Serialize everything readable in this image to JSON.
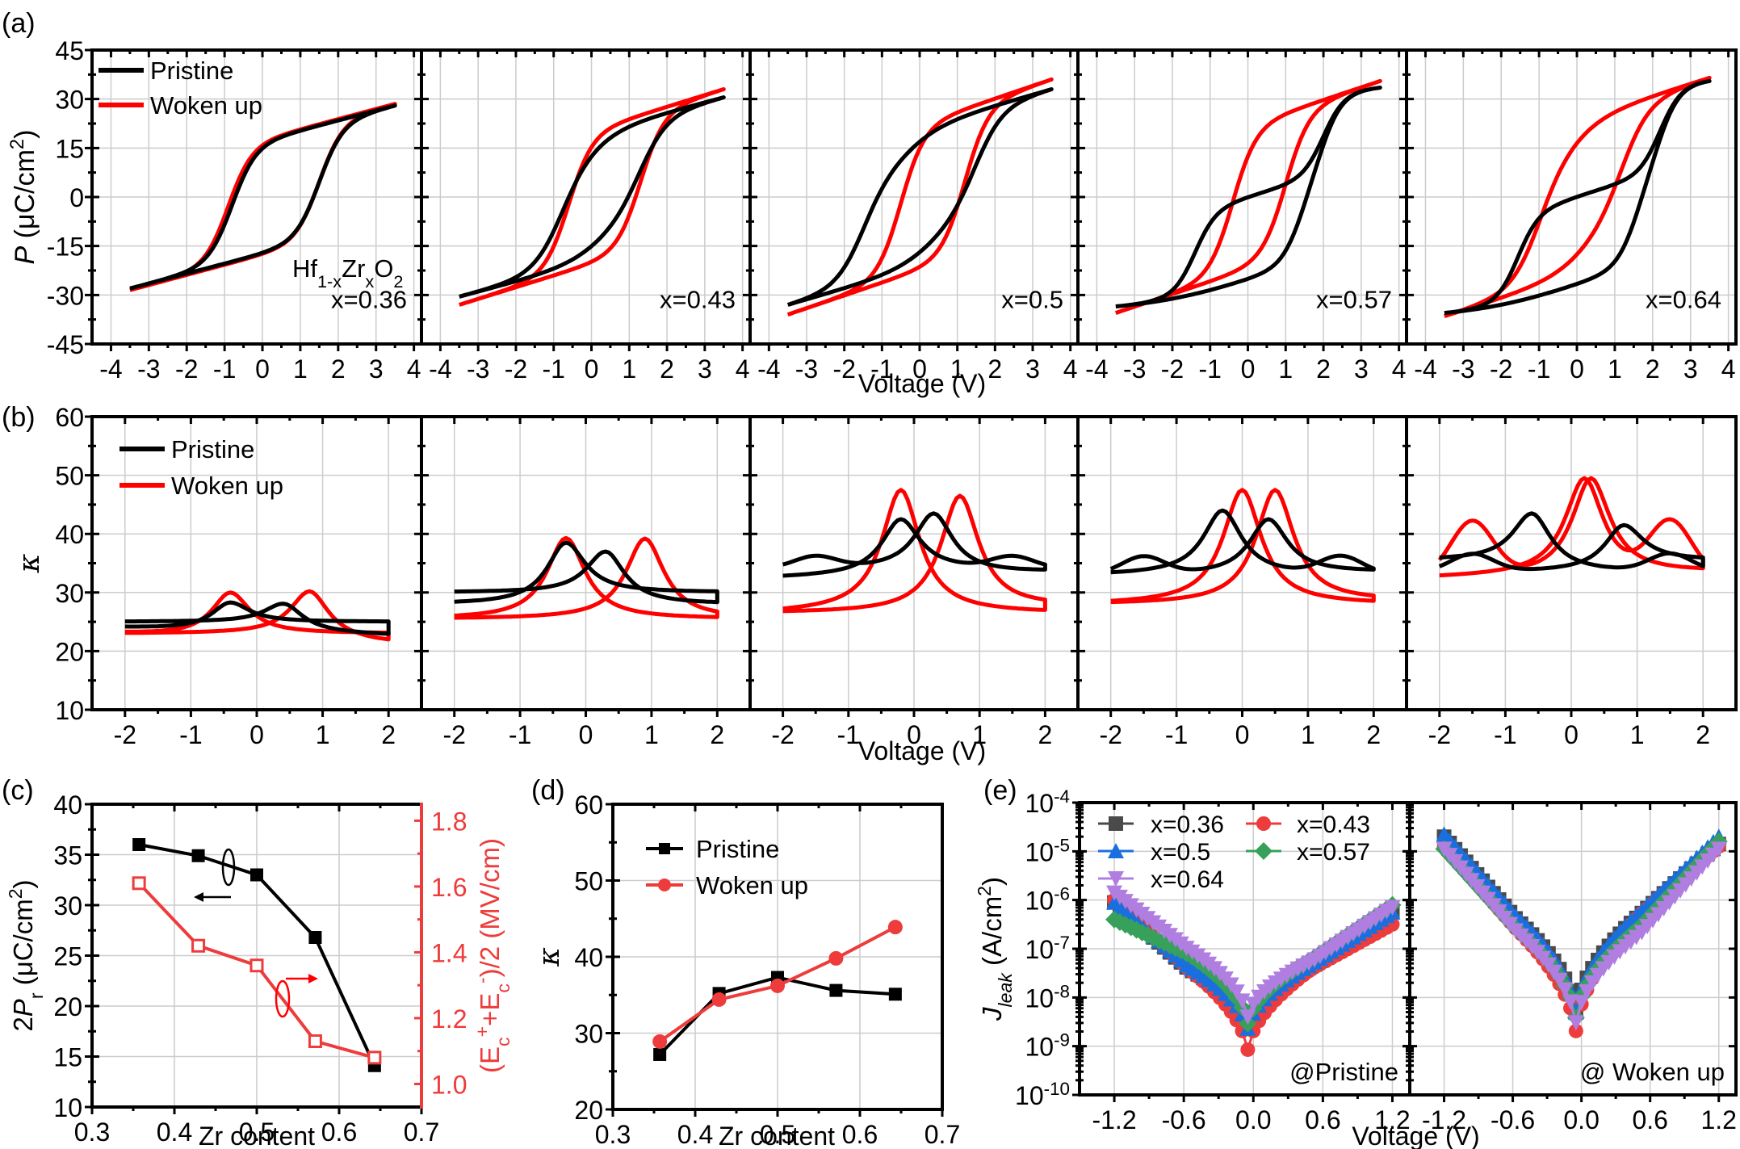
{
  "chart_data": [
    {
      "id": "a",
      "panel_label": "(a)",
      "type": "line",
      "ylabel": "P (μC/cm²)",
      "ylabel_var": "P",
      "ylabel_unit": " (μC/cm",
      "ylabel_sup": "2",
      "ylabel_close": ")",
      "xlabel": "Voltage (V)",
      "xlim": [
        -4.5,
        4.2
      ],
      "ylim": [
        -45,
        45
      ],
      "xticks": [
        -4,
        -3,
        -2,
        -1,
        0,
        1,
        2,
        3,
        4
      ],
      "yticks": [
        -45,
        -30,
        -15,
        0,
        15,
        30,
        45
      ],
      "grid": true,
      "legend": {
        "position": "top-left",
        "entries": [
          {
            "name": "Pristine",
            "color": "#000000"
          },
          {
            "name": "Woken up",
            "color": "#ff0000"
          }
        ]
      },
      "composition_label": {
        "base": "Hf",
        "sub1": "1-x",
        "mid": "Zr",
        "sub2": "x",
        "end": "O",
        "sub3": "2"
      },
      "subplots": [
        {
          "label": "x=0.36",
          "pristine": {
            "vmax": 3.5,
            "pmax": 28,
            "pmin": -28,
            "pr": 12,
            "vc_pos": 1.5,
            "vc_neg": -0.8,
            "shape": "normal"
          },
          "woken": {
            "vmax": 3.5,
            "pmax": 28.5,
            "pmin": -28.5,
            "pr": 17,
            "vc_pos": 1.5,
            "vc_neg": -0.9,
            "shape": "normal"
          }
        },
        {
          "label": "x=0.43",
          "pristine": {
            "vmax": 3.5,
            "pmax": 30.5,
            "pmin": -30.5,
            "pr": 7,
            "vc_pos": 1.3,
            "vc_neg": -0.8,
            "shape": "pinched"
          },
          "woken": {
            "vmax": 3.5,
            "pmax": 33,
            "pmin": -33,
            "pr": 17,
            "vc_pos": 1.3,
            "vc_neg": -0.6,
            "shape": "normal"
          }
        },
        {
          "label": "x=0.5",
          "pristine": {
            "vmax": 3.5,
            "pmax": 33,
            "pmin": -33,
            "pr": 2,
            "vc_pos": 1.5,
            "vc_neg": -1.5,
            "shape": "pinched"
          },
          "woken": {
            "vmax": 3.5,
            "pmax": 36,
            "pmin": -36,
            "pr": 18,
            "vc_pos": 1.2,
            "vc_neg": -0.5,
            "shape": "normal"
          }
        },
        {
          "label": "x=0.57",
          "pristine": {
            "vmax": 3.5,
            "pmax": 33.5,
            "pmin": -33.5,
            "pr": 1,
            "vc_pos": 2.0,
            "vc_neg": -2.0,
            "shape": "double"
          },
          "woken": {
            "vmax": 3.5,
            "pmax": 35.5,
            "pmin": -35.5,
            "pr": 14,
            "vc_pos": 1.0,
            "vc_neg": -0.4,
            "shape": "normal"
          }
        },
        {
          "label": "x=0.64",
          "pristine": {
            "vmax": 3.5,
            "pmax": 35.5,
            "pmin": -35.5,
            "pr": 0.5,
            "vc_pos": 2.2,
            "vc_neg": -2.2,
            "shape": "double"
          },
          "woken": {
            "vmax": 3.5,
            "pmax": 36.5,
            "pmin": -36.5,
            "pr": 5,
            "vc_pos": 1.2,
            "vc_neg": -1.0,
            "shape": "pinched"
          }
        }
      ]
    },
    {
      "id": "b",
      "panel_label": "(b)",
      "type": "line",
      "ylabel": "κ",
      "xlabel": "Voltage (V)",
      "xlim": [
        -2.5,
        2.5
      ],
      "ylim": [
        10,
        60
      ],
      "xticks": [
        -2,
        -1,
        0,
        1,
        2
      ],
      "yticks": [
        10,
        20,
        30,
        40,
        50,
        60
      ],
      "grid": true,
      "legend": {
        "position": "top-left",
        "entries": [
          {
            "name": "Pristine",
            "color": "#000000"
          },
          {
            "name": "Woken up",
            "color": "#ff0000"
          }
        ]
      },
      "subplots": [
        {
          "pristine": {
            "base_l": 24,
            "base_r": 22.7,
            "peaks": [
              [
                -0.4,
                28.3
              ],
              [
                0.4,
                28.1
              ]
            ],
            "low": 25
          },
          "woken": {
            "base_l": 23,
            "base_r": 21.3,
            "peaks": [
              [
                -0.4,
                30
              ],
              [
                0.8,
                30.2
              ]
            ],
            "low": 23
          }
        },
        {
          "pristine": {
            "base_l": 28,
            "base_r": 28,
            "peaks": [
              [
                -0.3,
                38.5
              ],
              [
                0.3,
                37
              ]
            ],
            "low": 30
          },
          "woken": {
            "base_l": 25.5,
            "base_r": 25.5,
            "peaks": [
              [
                -0.3,
                39.3
              ],
              [
                0.9,
                39.2
              ]
            ],
            "low": 25.5
          }
        },
        {
          "pristine": {
            "base_l": 32.5,
            "base_r": 33.5,
            "peaks": [
              [
                -0.2,
                42.5
              ],
              [
                0.3,
                43.5
              ]
            ],
            "low": 34,
            "shoulder": 36
          },
          "woken": {
            "base_l": 26.5,
            "base_r": 27.5,
            "peaks": [
              [
                -0.2,
                47.5
              ],
              [
                0.7,
                46.5
              ]
            ],
            "low": 26.5
          }
        },
        {
          "pristine": {
            "base_l": 33,
            "base_r": 33.5,
            "peaks": [
              [
                -0.3,
                44
              ],
              [
                0.4,
                42.5
              ]
            ],
            "low": 33,
            "shoulder": 36
          },
          "woken": {
            "base_l": 28,
            "base_r": 28.5,
            "peaks": [
              [
                0,
                47.5
              ],
              [
                0.5,
                47.5
              ]
            ],
            "low": 28
          }
        },
        {
          "pristine": {
            "base_l": 35.5,
            "base_r": 35.5,
            "peaks": [
              [
                -0.6,
                43.5
              ],
              [
                0.8,
                41.5
              ]
            ],
            "low": 33.5,
            "shoulder": 36.5
          },
          "woken": {
            "base_l": 32.5,
            "base_r": 33.5,
            "peaks": [
              [
                0.2,
                49.5
              ],
              [
                0.3,
                49.5
              ]
            ],
            "low": 32.5,
            "shoulder": 42
          }
        }
      ]
    },
    {
      "id": "c",
      "panel_label": "(c)",
      "type": "line",
      "xlabel": "Zr content",
      "ylabel_left": "2Pr (μC/cm²)",
      "ylabel_right": "(Ec⁺+Ec⁻)/2 (MV/cm)",
      "xlim": [
        0.3,
        0.7
      ],
      "ylim_left": [
        10,
        40
      ],
      "ylim_right": [
        0.93,
        1.85
      ],
      "xticks": [
        0.3,
        0.4,
        0.5,
        0.6,
        0.7
      ],
      "xtick_labels": [
        "0.3",
        "0.4",
        "0.5",
        "0.6",
        "0.7"
      ],
      "yticks_left": [
        10,
        15,
        20,
        25,
        30,
        35,
        40
      ],
      "yticks_right": [
        1.0,
        1.2,
        1.4,
        1.6,
        1.8
      ],
      "ytick_labels_right": [
        "1.0",
        "1.2",
        "1.4",
        "1.6",
        "1.8"
      ],
      "grid": true,
      "series": [
        {
          "name": "2Pr",
          "axis": "left",
          "color": "#000000",
          "marker": "filled-square",
          "x": [
            0.357,
            0.429,
            0.5,
            0.571,
            0.643
          ],
          "values": [
            36.0,
            34.9,
            33.0,
            26.8,
            14.1
          ]
        },
        {
          "name": "(Ec+ + Ec-)/2",
          "axis": "right",
          "color": "#ee3b3b",
          "marker": "open-square",
          "x": [
            0.357,
            0.429,
            0.5,
            0.571,
            0.643
          ],
          "values": [
            1.61,
            1.42,
            1.36,
            1.13,
            1.08
          ]
        }
      ]
    },
    {
      "id": "d",
      "panel_label": "(d)",
      "type": "line",
      "xlabel": "Zr content",
      "ylabel": "κ",
      "xlim": [
        0.3,
        0.7
      ],
      "ylim": [
        20,
        60
      ],
      "xticks": [
        0.3,
        0.4,
        0.5,
        0.6,
        0.7
      ],
      "xtick_labels": [
        "0.3",
        "0.4",
        "0.5",
        "0.6",
        "0.7"
      ],
      "yticks": [
        20,
        30,
        40,
        50,
        60
      ],
      "grid": true,
      "legend": {
        "position": "top-left"
      },
      "series": [
        {
          "name": "Pristine",
          "color": "#000000",
          "marker": "square",
          "x": [
            0.357,
            0.429,
            0.5,
            0.571,
            0.643
          ],
          "values": [
            27.2,
            35.2,
            37.3,
            35.6,
            35.1
          ]
        },
        {
          "name": "Woken up",
          "color": "#ee3b3b",
          "marker": "circle",
          "x": [
            0.357,
            0.429,
            0.5,
            0.571,
            0.643
          ],
          "values": [
            28.9,
            34.4,
            36.2,
            39.8,
            43.9
          ]
        }
      ]
    },
    {
      "id": "e",
      "panel_label": "(e)",
      "type": "scatter",
      "ylabel_var": "J",
      "ylabel_sub": "leak",
      "ylabel_unit": " (A/cm",
      "ylabel_sup": "2",
      "ylabel_close": ")",
      "xlabel": "Voltage (V)",
      "xlim": [
        -1.5,
        1.35
      ],
      "ylim_log10": [
        -10,
        -4
      ],
      "xticks": [
        -1.2,
        -0.6,
        0.0,
        0.6,
        1.2
      ],
      "xtick_labels": [
        "-1.2",
        "-0.6",
        "0.0",
        "0.6",
        "1.2"
      ],
      "ytick_exponents": [
        "-10",
        "-9",
        "-8",
        "-7",
        "-6",
        "-5",
        "-4"
      ],
      "grid": true,
      "legend": {
        "position": "top-left",
        "entries": [
          {
            "name": "x=0.36",
            "color": "#4a4a4a",
            "marker": "square"
          },
          {
            "name": "x=0.43",
            "color": "#ee3b3b",
            "marker": "circle"
          },
          {
            "name": "x=0.5",
            "color": "#1a6fdf",
            "marker": "triangle-up"
          },
          {
            "name": "x=0.57",
            "color": "#37a05a",
            "marker": "diamond"
          },
          {
            "name": "x=0.64",
            "color": "#b07ee0",
            "marker": "triangle-down"
          }
        ]
      },
      "subplots": [
        {
          "annotation": "@Pristine",
          "series": [
            {
              "name": "x=0.36",
              "left_end": -6.05,
              "right_end": -6.25,
              "min": -8.7,
              "knee_l": -7.4,
              "knee_r": -7.35
            },
            {
              "name": "x=0.43",
              "left_end": -6.0,
              "right_end": -6.5,
              "min": -9.15,
              "knee_l": -7.4,
              "knee_r": -7.4
            },
            {
              "name": "x=0.5",
              "left_end": -6.05,
              "right_end": -6.25,
              "min": -8.7,
              "knee_l": -7.35,
              "knee_r": -7.3
            },
            {
              "name": "x=0.57",
              "left_end": -6.4,
              "right_end": -6.1,
              "min": -8.6,
              "knee_l": -7.1,
              "knee_r": -7.2
            },
            {
              "name": "x=0.64",
              "left_end": -5.85,
              "right_end": -6.15,
              "min": -8.45,
              "knee_l": -7.0,
              "knee_r": -7.25
            }
          ]
        },
        {
          "annotation": "@ Woken up",
          "series": [
            {
              "name": "x=0.36",
              "left_end": -4.7,
              "right_end": -4.85,
              "min": -8.4,
              "knee_l": -6.4,
              "knee_r": -6.3
            },
            {
              "name": "x=0.43",
              "left_end": -4.9,
              "right_end": -4.9,
              "min": -8.8,
              "knee_l": -6.6,
              "knee_r": -6.3
            },
            {
              "name": "x=0.5",
              "left_end": -4.65,
              "right_end": -4.7,
              "min": -8.4,
              "knee_l": -6.35,
              "knee_r": -6.25
            },
            {
              "name": "x=0.57",
              "left_end": -4.95,
              "right_end": -4.8,
              "min": -8.5,
              "knee_l": -6.6,
              "knee_r": -6.55
            },
            {
              "name": "x=0.64",
              "left_end": -4.95,
              "right_end": -4.95,
              "min": -8.6,
              "knee_l": -6.65,
              "knee_r": -6.7
            }
          ]
        }
      ]
    }
  ]
}
